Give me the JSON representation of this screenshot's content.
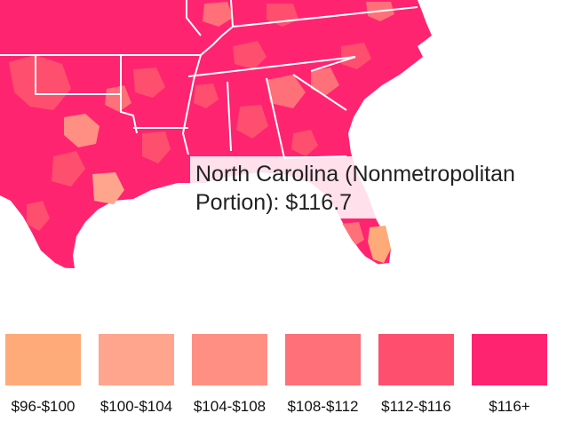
{
  "tooltip": {
    "text": "North Carolina (Nonmetropolitan\nPortion): $116.7"
  },
  "legend": {
    "items": [
      {
        "label": "$96-$100",
        "color": "#ffaa78"
      },
      {
        "label": "$100-$104",
        "color": "#ffa58e"
      },
      {
        "label": "$104-$108",
        "color": "#ff8f83"
      },
      {
        "label": "$108-$112",
        "color": "#ff7078"
      },
      {
        "label": "$112-$116",
        "color": "#ff4f6f"
      },
      {
        "label": "$116+",
        "color": "#ff2470"
      }
    ]
  },
  "map": {
    "dominant_color": "#ff2470",
    "state_border_color": "#ffffff"
  }
}
